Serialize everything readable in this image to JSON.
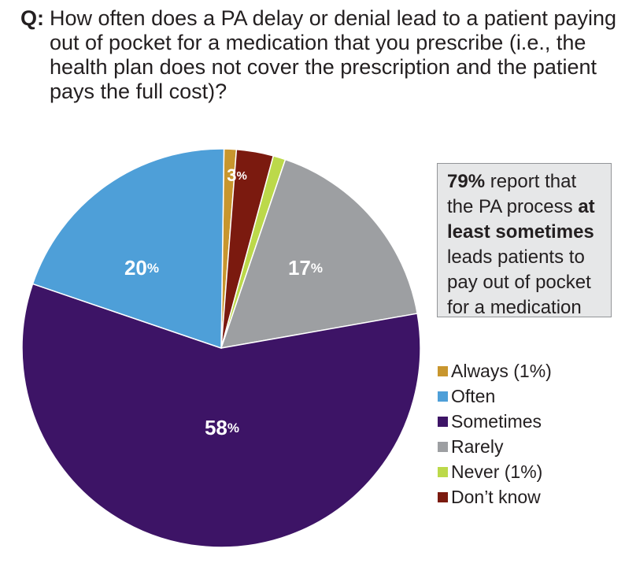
{
  "question": {
    "label": "Q:",
    "text": "How often does a PA delay or denial lead to a patient paying out of pocket for a medication that you prescribe (i.e., the health plan does not cover the prescription and the patient pays the full cost)?"
  },
  "callout": {
    "stat": "79%",
    "text_1": " report that the PA process ",
    "emphasis": "at least sometimes",
    "text_2": " leads patients to pay out of pocket for a medication"
  },
  "chart_data": {
    "type": "pie",
    "unit": "%",
    "slices": [
      {
        "category": "Always (1%)",
        "value": 1,
        "color": "#c8962e",
        "label": ""
      },
      {
        "category": "Don’t know",
        "value": 3,
        "color": "#7b1a0f",
        "label": "3"
      },
      {
        "category": "Never (1%)",
        "value": 1,
        "color": "#bcd94a",
        "label": ""
      },
      {
        "category": "Rarely",
        "value": 17,
        "color": "#9d9fa2",
        "label": "17"
      },
      {
        "category": "Sometimes",
        "value": 58,
        "color": "#3d1466",
        "label": "58"
      },
      {
        "category": "Often",
        "value": 20,
        "color": "#4e9fd8",
        "label": "20"
      }
    ],
    "legend": [
      {
        "label": "Always (1%)",
        "color": "#c8962e"
      },
      {
        "label": "Often",
        "color": "#4e9fd8"
      },
      {
        "label": "Sometimes",
        "color": "#3d1466"
      },
      {
        "label": "Rarely",
        "color": "#9d9fa2"
      },
      {
        "label": "Never (1%)",
        "color": "#bcd94a"
      },
      {
        "label": "Don’t know",
        "color": "#7b1a0f"
      }
    ],
    "legend_position": "bottom-right"
  }
}
